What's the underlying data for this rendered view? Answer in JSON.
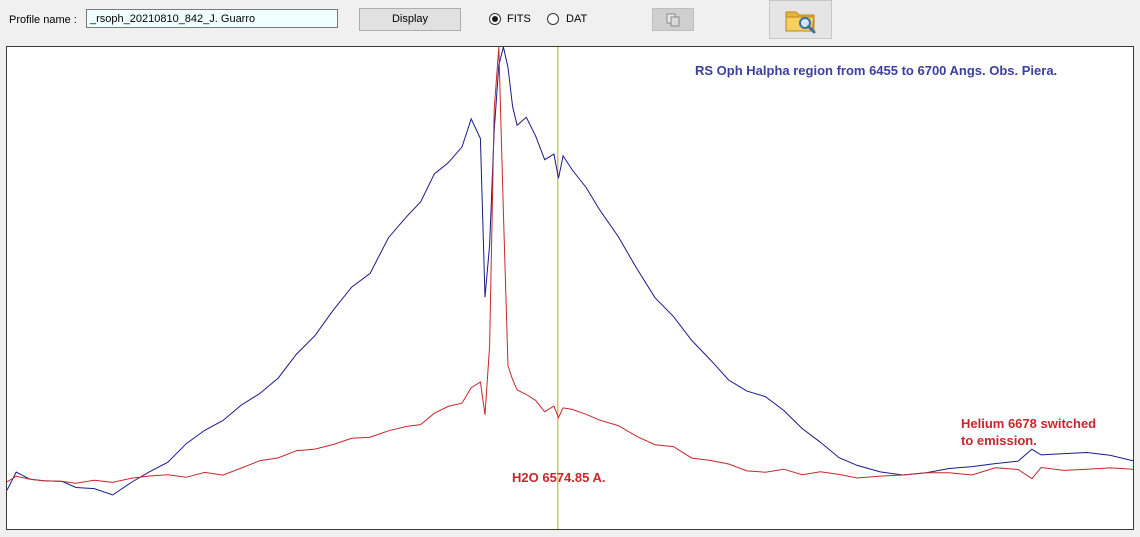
{
  "toolbar": {
    "profile_label": "Profile name :",
    "profile_value": "_rsoph_20210810_842_J. Guarro",
    "display_label": "Display",
    "format_options": [
      {
        "label": "FITS",
        "selected": true
      },
      {
        "label": "DAT",
        "selected": false
      }
    ],
    "copy_icon": "copy-icon",
    "folder_icon": "folder-search-icon"
  },
  "chart_data": {
    "type": "line",
    "annotations": {
      "title": "RS Oph Halpha region from 6455 to 6700 Angs.  Obs. Piera.",
      "helium_line1": "Helium 6678 switched",
      "helium_line2": "to emission.",
      "h2o": "H2O 6574.85 A."
    },
    "xlim": [
      6455,
      6700
    ],
    "marker_x": 6574.85,
    "marker_color": "#d4a017",
    "series": [
      {
        "color": "#1a1a8c",
        "x": [
          6455,
          6457,
          6460,
          6463,
          6467,
          6470,
          6474,
          6478,
          6482,
          6486,
          6490,
          6494,
          6498,
          6502,
          6506,
          6510,
          6514,
          6518,
          6522,
          6526,
          6530,
          6534,
          6538,
          6542,
          6545,
          6548,
          6551,
          6554,
          6556,
          6558,
          6559,
          6560,
          6561,
          6562,
          6563,
          6564,
          6565,
          6566,
          6568,
          6570,
          6572,
          6574,
          6575,
          6576,
          6578,
          6581,
          6584,
          6588,
          6592,
          6596,
          6600,
          6604,
          6608,
          6612,
          6616,
          6620,
          6624,
          6628,
          6632,
          6636,
          6640,
          6645,
          6650,
          6655,
          6660,
          6665,
          6670,
          6675,
          6678,
          6680,
          6685,
          6690,
          6695,
          6700
        ],
        "y": [
          0.04,
          0.08,
          0.07,
          0.06,
          0.06,
          0.05,
          0.04,
          0.03,
          0.06,
          0.08,
          0.11,
          0.15,
          0.18,
          0.21,
          0.24,
          0.27,
          0.31,
          0.36,
          0.41,
          0.47,
          0.52,
          0.56,
          0.64,
          0.69,
          0.73,
          0.79,
          0.82,
          0.86,
          0.92,
          0.88,
          0.5,
          0.62,
          0.9,
          1.05,
          1.1,
          1.05,
          0.95,
          0.91,
          0.93,
          0.88,
          0.83,
          0.84,
          0.78,
          0.84,
          0.8,
          0.76,
          0.71,
          0.64,
          0.57,
          0.5,
          0.45,
          0.4,
          0.35,
          0.3,
          0.28,
          0.26,
          0.23,
          0.19,
          0.15,
          0.12,
          0.1,
          0.08,
          0.08,
          0.08,
          0.09,
          0.1,
          0.1,
          0.11,
          0.14,
          0.12,
          0.13,
          0.13,
          0.12,
          0.11
        ]
      },
      {
        "color": "#c8262b",
        "x": [
          6455,
          6457,
          6460,
          6463,
          6467,
          6470,
          6474,
          6478,
          6482,
          6486,
          6490,
          6494,
          6498,
          6502,
          6506,
          6510,
          6514,
          6518,
          6522,
          6526,
          6530,
          6534,
          6538,
          6542,
          6545,
          6548,
          6551,
          6554,
          6556,
          6558,
          6559,
          6560,
          6561,
          6562,
          6563,
          6564,
          6565,
          6566,
          6568,
          6570,
          6572,
          6574,
          6575,
          6576,
          6578,
          6581,
          6584,
          6588,
          6592,
          6596,
          6600,
          6604,
          6608,
          6612,
          6616,
          6620,
          6624,
          6628,
          6632,
          6636,
          6640,
          6645,
          6650,
          6655,
          6660,
          6665,
          6670,
          6675,
          6678,
          6680,
          6685,
          6690,
          6695,
          6700
        ],
        "y": [
          0.06,
          0.07,
          0.07,
          0.06,
          0.06,
          0.06,
          0.06,
          0.06,
          0.07,
          0.07,
          0.08,
          0.07,
          0.08,
          0.08,
          0.09,
          0.11,
          0.12,
          0.13,
          0.14,
          0.15,
          0.16,
          0.17,
          0.18,
          0.19,
          0.2,
          0.22,
          0.24,
          0.25,
          0.28,
          0.3,
          0.22,
          0.38,
          0.95,
          1.1,
          0.7,
          0.34,
          0.3,
          0.28,
          0.27,
          0.25,
          0.23,
          0.24,
          0.21,
          0.24,
          0.23,
          0.22,
          0.21,
          0.19,
          0.17,
          0.15,
          0.14,
          0.12,
          0.11,
          0.1,
          0.09,
          0.08,
          0.09,
          0.08,
          0.08,
          0.08,
          0.07,
          0.07,
          0.08,
          0.08,
          0.08,
          0.08,
          0.09,
          0.09,
          0.07,
          0.09,
          0.09,
          0.09,
          0.09,
          0.09
        ]
      }
    ]
  }
}
